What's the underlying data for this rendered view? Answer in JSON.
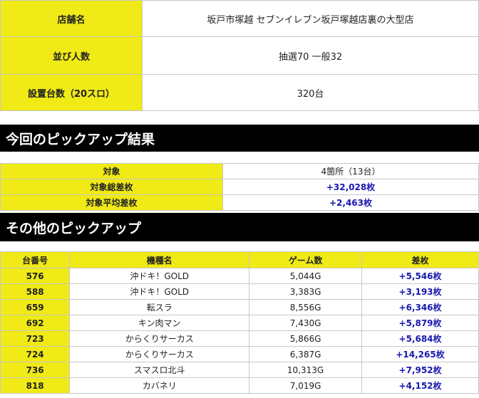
{
  "store": {
    "rows": [
      {
        "label": "店舗名",
        "value": "坂戸市塚越 セブンイレブン坂戸塚越店裏の大型店"
      },
      {
        "label": "並び人数",
        "value": "抽選70 一般32"
      },
      {
        "label": "設置台数（20スロ）",
        "value": "320台"
      }
    ]
  },
  "section1": {
    "title": "今回のピックアップ結果"
  },
  "pickup": {
    "rows": [
      {
        "label": "対象",
        "value": "4箇所（13台）"
      },
      {
        "label": "対象総差枚",
        "value": "+32,028枚"
      },
      {
        "label": "対象平均差枚",
        "value": "+2,463枚"
      }
    ]
  },
  "section2": {
    "title": "その他のピックアップ"
  },
  "others": {
    "headers": [
      "台番号",
      "機種名",
      "ゲーム数",
      "差枚"
    ],
    "rows": [
      [
        "576",
        "沖ドキ！GOLD",
        "5,044G",
        "+5,546枚"
      ],
      [
        "588",
        "沖ドキ！GOLD",
        "3,383G",
        "+3,193枚"
      ],
      [
        "659",
        "転スラ",
        "8,556G",
        "+6,346枚"
      ],
      [
        "692",
        "キン肉マン",
        "7,430G",
        "+5,879枚"
      ],
      [
        "723",
        "からくりサーカス",
        "5,866G",
        "+5,684枚"
      ],
      [
        "724",
        "からくりサーカス",
        "6,387G",
        "+14,265枚"
      ],
      [
        "736",
        "スマスロ北斗",
        "10,313G",
        "+7,952枚"
      ],
      [
        "818",
        "カバネリ",
        "7,019G",
        "+4,152枚"
      ]
    ]
  },
  "colors": {
    "header_yellow": "#f0ea16",
    "banner_black": "#000000",
    "value_blue": "#1818b0"
  }
}
